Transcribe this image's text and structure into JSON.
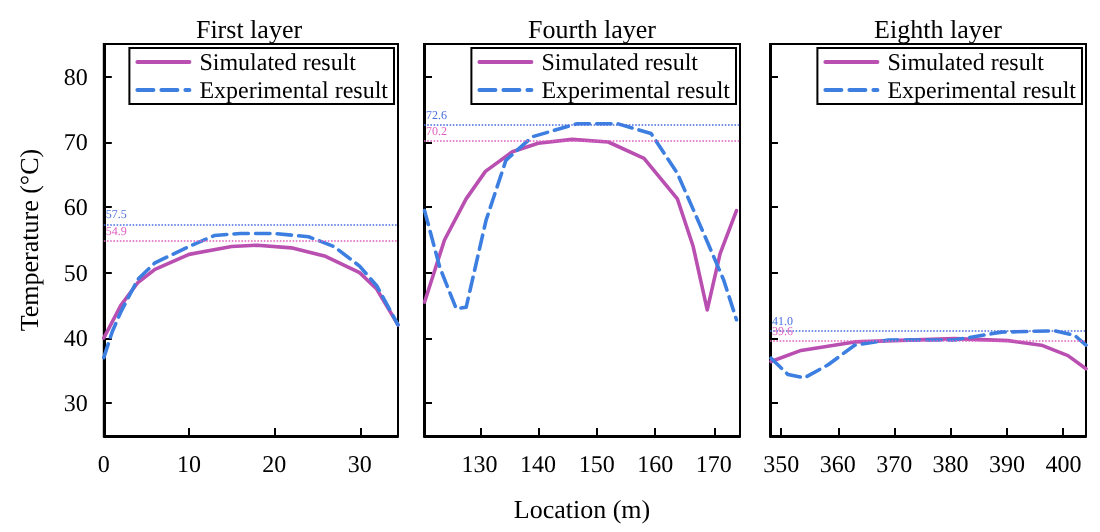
{
  "chart_data": [
    {
      "type": "line",
      "title": "First layer",
      "ylabel": "Temperature (°C)",
      "xlim": [
        0,
        34.5
      ],
      "xticks": [
        0,
        10,
        20,
        30
      ],
      "ylim": [
        25,
        85
      ],
      "yticks": [
        30,
        40,
        50,
        60,
        70,
        80
      ],
      "grid": false,
      "legend": "top right",
      "series": [
        {
          "name": "Simulated result",
          "color": "#b94fb0",
          "line_style": "solid",
          "x": [
            0,
            2,
            4,
            6,
            10,
            15,
            18,
            22,
            26,
            30,
            32,
            34.5
          ],
          "values": [
            40,
            45,
            48.5,
            50.5,
            52.8,
            54,
            54.2,
            53.8,
            52.5,
            50,
            47.5,
            42
          ]
        },
        {
          "name": "Experimental result",
          "color": "#3c7fe0",
          "line_style": "dashed",
          "x": [
            0,
            1,
            2,
            4,
            6,
            10,
            13,
            16,
            20,
            24,
            27,
            30,
            32,
            34.5
          ],
          "values": [
            37,
            41,
            44,
            49,
            51.5,
            54,
            55.7,
            56,
            56,
            55.5,
            54,
            51,
            48,
            42
          ]
        }
      ],
      "ref_lines": [
        {
          "axis": "y",
          "value": 57.5,
          "label": "57.5",
          "color": "#4a6fe0",
          "line_style": "dotted"
        },
        {
          "axis": "y",
          "value": 54.9,
          "label": "54.9",
          "color": "#e060c0",
          "line_style": "dotted"
        }
      ]
    },
    {
      "type": "line",
      "title": "Fourth layer",
      "xlabel": "Location (m)",
      "xlim": [
        120.5,
        174.5
      ],
      "xticks": [
        130,
        140,
        150,
        160,
        170
      ],
      "ylim": [
        25,
        85
      ],
      "yticks": [
        30,
        40,
        50,
        60,
        70,
        80
      ],
      "grid": false,
      "legend": "top right",
      "tick_labels": "x",
      "series": [
        {
          "name": "Simulated result",
          "color": "#b94fb0",
          "line_style": "solid",
          "x": [
            120.6,
            124,
            127.7,
            131,
            135.6,
            140,
            145.8,
            152,
            158.1,
            163.8,
            166.5,
            168.9,
            171.1,
            173.9
          ],
          "values": [
            45.5,
            55,
            61.3,
            65.5,
            68.5,
            69.8,
            70.4,
            70,
            67.5,
            61.3,
            54,
            44.3,
            52.9,
            59.5
          ]
        },
        {
          "name": "Experimental result",
          "color": "#3c7fe0",
          "line_style": "dashed",
          "x": [
            120.6,
            123.2,
            126,
            127.7,
            131.1,
            134.5,
            139,
            146.7,
            153.6,
            159.3,
            163.8,
            168.3,
            171.7,
            173.9
          ],
          "values": [
            59.5,
            50.8,
            44.5,
            44.7,
            58,
            67.2,
            70.8,
            72.8,
            72.8,
            71.3,
            65.2,
            56,
            48.9,
            42.8
          ]
        }
      ],
      "ref_lines": [
        {
          "axis": "y",
          "value": 72.6,
          "label": "72.6",
          "color": "#4a6fe0",
          "line_style": "dotted"
        },
        {
          "axis": "y",
          "value": 70.2,
          "label": "70.2",
          "color": "#e060c0",
          "line_style": "dotted"
        }
      ]
    },
    {
      "type": "line",
      "title": "Eighth layer",
      "xlim": [
        348,
        404
      ],
      "xticks": [
        350,
        360,
        370,
        380,
        390,
        400
      ],
      "ylim": [
        25,
        85
      ],
      "yticks": [
        30,
        40,
        50,
        60,
        70,
        80
      ],
      "grid": false,
      "legend": "top right",
      "tick_labels": "x",
      "series": [
        {
          "name": "Simulated result",
          "color": "#b94fb0",
          "line_style": "solid",
          "x": [
            348.2,
            353.5,
            363,
            380.7,
            390.2,
            396.1,
            400.8,
            404
          ],
          "values": [
            36.4,
            38.1,
            39.4,
            39.9,
            39.6,
            38.9,
            37.3,
            35.3
          ]
        },
        {
          "name": "Experimental result",
          "color": "#3c7fe0",
          "line_style": "dashed",
          "x": [
            348.2,
            351.2,
            354.1,
            358.3,
            363,
            369,
            380.7,
            389,
            398.5,
            402,
            404
          ],
          "values": [
            36.9,
            34.4,
            33.9,
            35.9,
            38.9,
            39.7,
            39.7,
            40.9,
            41.1,
            40.4,
            38.9
          ]
        }
      ],
      "ref_lines": [
        {
          "axis": "y",
          "value": 41.0,
          "label": "41.0",
          "color": "#4a6fe0",
          "line_style": "dotted"
        },
        {
          "axis": "y",
          "value": 39.6,
          "label": "39.6",
          "color": "#e060c0",
          "line_style": "dotted"
        }
      ]
    }
  ]
}
